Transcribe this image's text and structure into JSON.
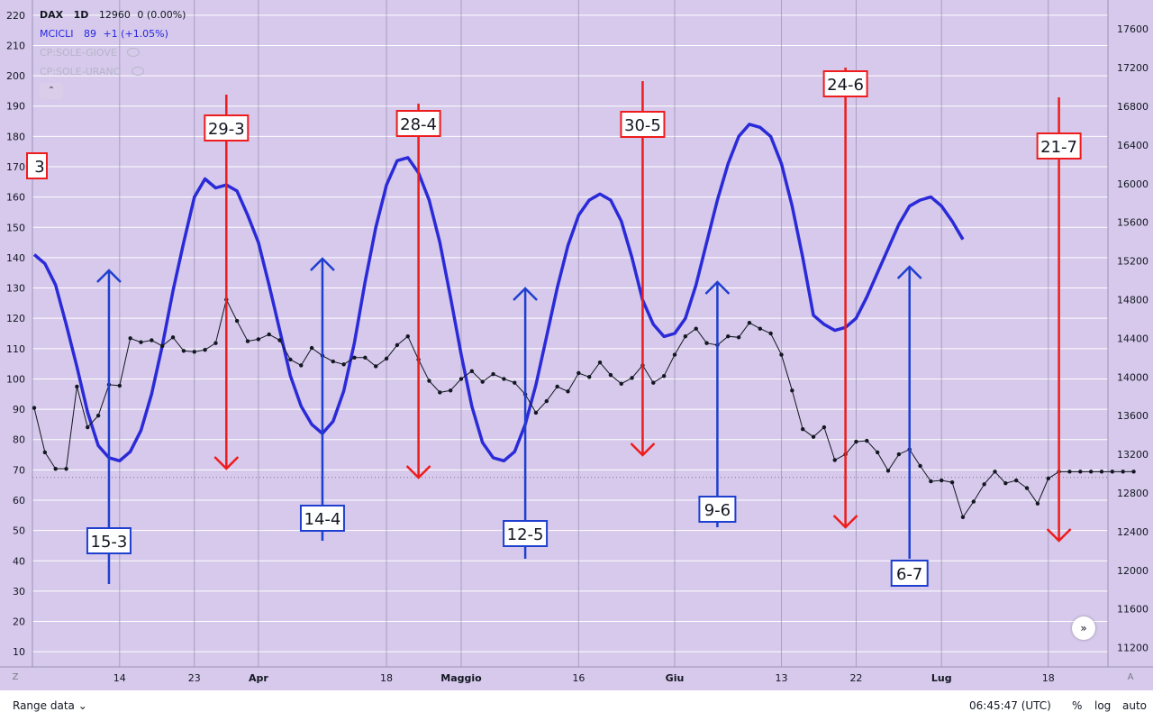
{
  "legend": {
    "symbol": "DAX",
    "timeframe": "1D",
    "last": "12960",
    "change": "0 (0.00%)",
    "indicator_name": "MCICLI",
    "indicator_value": "89",
    "indicator_change": "+1 (+1.05%)",
    "hidden1": "CP:SOLE-GIOVE",
    "hidden2": "CP:SOLE-URANO"
  },
  "bottom": {
    "range_label": "Range data",
    "time": "06:45:47 (UTC)",
    "percent": "%",
    "log": "log",
    "auto": "auto"
  },
  "corners": {
    "left": "Z",
    "right": "A"
  },
  "colors": {
    "background": "#d6c9eb",
    "cycle": "#2a2ad8",
    "price": "#131722",
    "top_marker": "#ee1c1c",
    "bottom_marker": "#1f3fcf"
  },
  "chart_data": {
    "type": "line",
    "x_tick_labels": [
      "14",
      "23",
      "Apr",
      "18",
      "Maggio",
      "16",
      "Giu",
      "13",
      "22",
      "Lug",
      "18"
    ],
    "x_tick_index": [
      8,
      15,
      21,
      33,
      40,
      51,
      60,
      70,
      77,
      85,
      95
    ],
    "n_days": 100,
    "left_axis": {
      "min": 5,
      "max": 225,
      "ticks": [
        10,
        20,
        30,
        40,
        50,
        60,
        70,
        80,
        90,
        100,
        110,
        120,
        130,
        140,
        150,
        160,
        170,
        180,
        190,
        200,
        210,
        220
      ]
    },
    "right_axis": {
      "min": 11000,
      "max": 17900,
      "ticks": [
        11200,
        11600,
        12000,
        12400,
        12800,
        13200,
        13600,
        14000,
        14400,
        14800,
        15200,
        15600,
        16000,
        16400,
        16800,
        17200,
        17600
      ]
    },
    "series": [
      {
        "name": "DAX",
        "axis": "right",
        "values": [
          13680,
          13220,
          13050,
          13050,
          13900,
          13480,
          13600,
          13920,
          13910,
          14400,
          14360,
          14380,
          14320,
          14410,
          14270,
          14260,
          14280,
          14350,
          14800,
          14580,
          14370,
          14390,
          14440,
          14380,
          14180,
          14120,
          14300,
          14220,
          14160,
          14130,
          14200,
          14200,
          14110,
          14190,
          14330,
          14420,
          14180,
          13960,
          13840,
          13860,
          13980,
          14060,
          13950,
          14030,
          13980,
          13940,
          13820,
          13630,
          13750,
          13900,
          13850,
          14040,
          14000,
          14150,
          14020,
          13930,
          13990,
          14120,
          13940,
          14010,
          14230,
          14420,
          14500,
          14350,
          14330,
          14420,
          14410,
          14560,
          14500,
          14450,
          14230,
          13860,
          13460,
          13380,
          13480,
          13140,
          13200,
          13330,
          13340,
          13220,
          13030,
          13200,
          13250,
          13080,
          12920,
          12930,
          12910,
          12550,
          12710,
          12890,
          13020,
          12900,
          12930,
          12850,
          12690,
          12950,
          13020,
          13020,
          13020,
          13020,
          13020,
          13020,
          13020,
          13020
        ],
        "last": 12960
      },
      {
        "name": "MCICLI",
        "axis": "left",
        "values": [
          141,
          138,
          131,
          118,
          104,
          89,
          78,
          74,
          73,
          76,
          83,
          95,
          111,
          129,
          145,
          160,
          166,
          163,
          164,
          162,
          154,
          145,
          131,
          116,
          101,
          91,
          85,
          82,
          86,
          96,
          112,
          132,
          150,
          164,
          172,
          173,
          168,
          159,
          145,
          127,
          108,
          91,
          79,
          74,
          73,
          76,
          85,
          98,
          114,
          130,
          144,
          154,
          159,
          161,
          159,
          152,
          140,
          126,
          118,
          114,
          115,
          120,
          131,
          145,
          159,
          171,
          180,
          184,
          183,
          180,
          171,
          157,
          140,
          121,
          118,
          116,
          117,
          120,
          127,
          135,
          143,
          151,
          157,
          159,
          160,
          157,
          152,
          146
        ]
      }
    ],
    "markers_top": [
      {
        "label": "29-3",
        "index": 18
      },
      {
        "label": "28-4",
        "index": 36
      },
      {
        "label": "30-5",
        "index": 57
      },
      {
        "label": "24-6",
        "index": 76
      },
      {
        "label": "21-7",
        "index": 96
      }
    ],
    "markers_bottom": [
      {
        "label": "15-3",
        "index": 7
      },
      {
        "label": "14-4",
        "index": 27
      },
      {
        "label": "12-5",
        "index": 46
      },
      {
        "label": "9-6",
        "index": 64
      },
      {
        "label": "6-7",
        "index": 82
      }
    ],
    "marker_offscreen_label": "3"
  }
}
